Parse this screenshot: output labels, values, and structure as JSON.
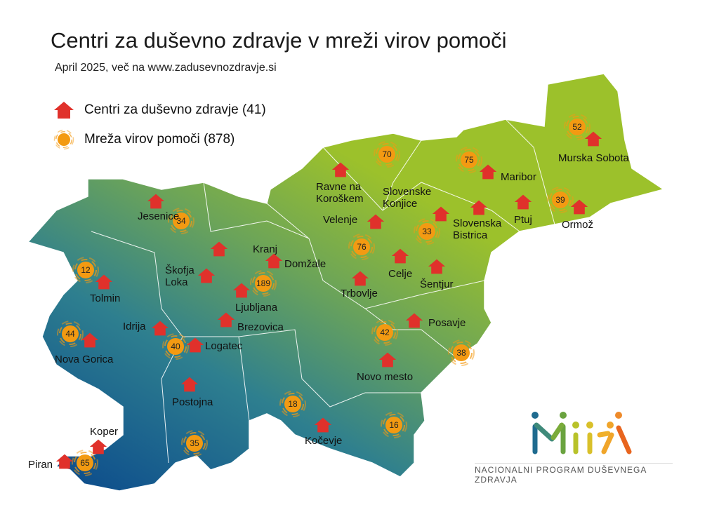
{
  "header": {
    "title": "Centri za duševno zdravje v mreži virov pomoči",
    "subtitle": "April 2025, več na www.zadusevnozdravje.si"
  },
  "legend": [
    {
      "icon": "house-icon",
      "label": "Centri za duševno zdravje (41)",
      "color": "#e0312b"
    },
    {
      "icon": "hub-icon",
      "label": "Mreža virov pomoči (878)",
      "color": "#f39a12"
    }
  ],
  "map": {
    "gradient": [
      "#0b4a8c",
      "#2e7f8f",
      "#6aa35a",
      "#9cc12b"
    ],
    "centers": [
      "Jesenice",
      "Kranj",
      "Škofja Loka",
      "Domžale",
      "Ljubljana",
      "Brezovica",
      "Tolmin",
      "Idrija",
      "Logatec",
      "Nova Gorica",
      "Postojna",
      "Koper",
      "Piran",
      "Ravne na Koroškem",
      "Slovenske Konjice",
      "Velenje",
      "Slovenska Bistrica",
      "Ptuj",
      "Maribor",
      "Murska Sobota",
      "Ormož",
      "Celje",
      "Šentjur",
      "Trbovlje",
      "Posavje",
      "Novo mesto",
      "Kočevje"
    ],
    "resource_counts": [
      34,
      12,
      44,
      40,
      35,
      65,
      189,
      76,
      70,
      75,
      33,
      39,
      52,
      42,
      38,
      18,
      16
    ]
  },
  "logo": {
    "name": "MIRA",
    "tagline": "NACIONALNI PROGRAM DUŠEVNEGA ZDRAVJA"
  }
}
